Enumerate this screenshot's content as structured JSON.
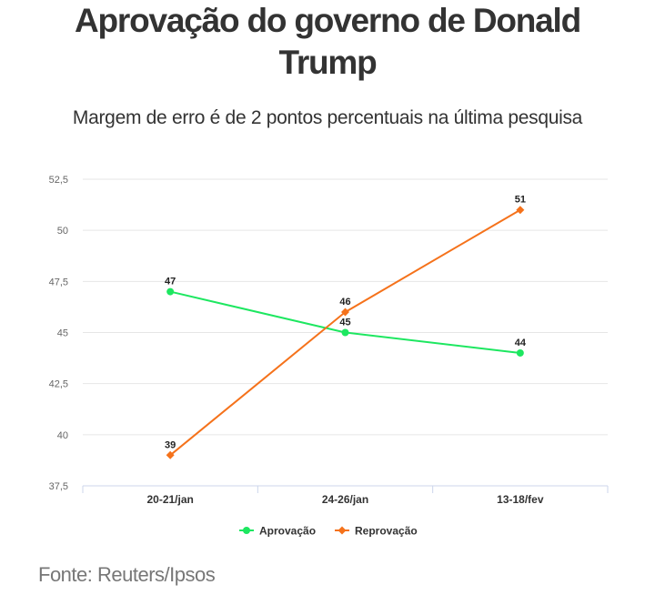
{
  "chart_data": {
    "type": "line",
    "title": "Aprovação do governo de Donald Trump",
    "subtitle": "Margem de erro é de 2 pontos percentuais na última pesquisa",
    "categories": [
      "20-21/jan",
      "24-26/jan",
      "13-18/fev"
    ],
    "yticks": [
      "37,5",
      "40",
      "42,5",
      "45",
      "47,5",
      "50",
      "52,5"
    ],
    "ylim": [
      37.5,
      52.5
    ],
    "grid": true,
    "legend_position": "bottom",
    "series": [
      {
        "name": "Aprovação",
        "values": [
          47,
          45,
          44
        ],
        "color": "#1de760",
        "marker": "circle"
      },
      {
        "name": "Reprovação",
        "values": [
          39,
          46,
          51
        ],
        "color": "#f5721b",
        "marker": "diamond"
      }
    ]
  },
  "source": "Fonte: Reuters/Ipsos"
}
